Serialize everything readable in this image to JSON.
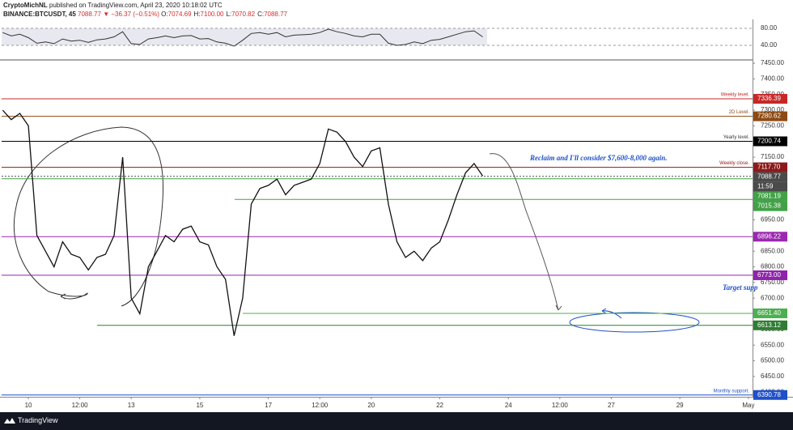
{
  "header": {
    "author": "CryptoMichNL",
    "published": "published on TradingView.com, April 23, 2020 10:18:02 UTC",
    "symbol": "BINANCE:BTCUSDT, 45",
    "price": "7088.77",
    "change": "▼ −36.37 (−0.51%)",
    "ohlc": [
      {
        "key": "O:",
        "value": "7074.69"
      },
      {
        "key": "H:",
        "value": "7100.00"
      },
      {
        "key": "L:",
        "value": "7070.82"
      },
      {
        "key": "C:",
        "value": "7088.77"
      }
    ],
    "brand": "TradingView"
  },
  "chart_data": {
    "type": "line",
    "color": "#111111",
    "x": [
      -0.75,
      -0.5,
      -0.25,
      0,
      0.25,
      0.5,
      0.75,
      1,
      1.25,
      1.5,
      1.75,
      2,
      2.25,
      2.5,
      2.75,
      3,
      3.25,
      3.5,
      3.75,
      4,
      4.25,
      4.5,
      4.75,
      5,
      5.25,
      5.5,
      5.75,
      6,
      6.25,
      6.5,
      6.75,
      7,
      7.25,
      7.5,
      7.75,
      8,
      8.25,
      8.5,
      8.75,
      9,
      9.25,
      9.5,
      9.75,
      10,
      10.25,
      10.5,
      10.75,
      11,
      11.25,
      11.5,
      11.75,
      12,
      12.25,
      12.5,
      12.75,
      13,
      13.25
    ],
    "values": [
      7300,
      7270,
      7290,
      7250,
      6900,
      6850,
      6800,
      6880,
      6840,
      6830,
      6790,
      6830,
      6840,
      6900,
      7150,
      6700,
      6650,
      6800,
      6850,
      6900,
      6880,
      6920,
      6930,
      6880,
      6870,
      6800,
      6760,
      6580,
      6700,
      7000,
      7050,
      7060,
      7080,
      7030,
      7060,
      7070,
      7080,
      7130,
      7240,
      7230,
      7200,
      7150,
      7120,
      7170,
      7180,
      7000,
      6880,
      6830,
      6850,
      6820,
      6860,
      6880,
      6950,
      7030,
      7100,
      7130,
      7090
    ],
    "rsi": [
      70,
      62,
      66,
      58,
      45,
      48,
      44,
      55,
      50,
      52,
      47,
      53,
      55,
      60,
      72,
      44,
      42,
      55,
      58,
      62,
      58,
      62,
      63,
      55,
      56,
      48,
      45,
      38,
      52,
      68,
      70,
      66,
      70,
      60,
      64,
      65,
      66,
      70,
      78,
      72,
      68,
      62,
      60,
      66,
      66,
      45,
      40,
      42,
      48,
      44,
      52,
      54,
      60,
      66,
      72,
      74,
      60
    ],
    "xlim": [
      -0.78,
      21.12
    ],
    "ylim": [
      6385,
      7458
    ],
    "rsi_ylim": [
      9.5,
      99
    ],
    "rsi_ticks": [
      {
        "value": 80,
        "label": "80.00"
      },
      {
        "value": 40,
        "label": "40.00"
      }
    ],
    "xticks": [
      {
        "value": 0,
        "label": "10"
      },
      {
        "value": 1.5,
        "label": "12:00"
      },
      {
        "value": 3,
        "label": "13"
      },
      {
        "value": 5,
        "label": "15"
      },
      {
        "value": 7,
        "label": "17"
      },
      {
        "value": 8.5,
        "label": "12:00"
      },
      {
        "value": 10,
        "label": "20"
      },
      {
        "value": 12,
        "label": "22"
      },
      {
        "value": 14,
        "label": "24"
      },
      {
        "value": 15.5,
        "label": "12:00"
      },
      {
        "value": 17,
        "label": "27"
      },
      {
        "value": 19,
        "label": "29"
      },
      {
        "value": 21,
        "label": "May"
      }
    ],
    "yticks": [
      {
        "value": 7450,
        "label": "7450.00"
      },
      {
        "value": 7400,
        "label": "7400.00"
      },
      {
        "value": 7350,
        "label": "7350.00"
      },
      {
        "value": 7300,
        "label": "7300.00"
      },
      {
        "value": 7250,
        "label": "7250.00"
      },
      {
        "value": 7200,
        "label": "7200.00"
      },
      {
        "value": 7150,
        "label": "7150.00"
      },
      {
        "value": 7100,
        "label": "7100.00"
      },
      {
        "value": 7050,
        "label": "7050.00"
      },
      {
        "value": 7000,
        "label": "7000.00"
      },
      {
        "value": 6950,
        "label": "6950.00"
      },
      {
        "value": 6900,
        "label": "6900.00"
      },
      {
        "value": 6850,
        "label": "6850.00"
      },
      {
        "value": 6800,
        "label": "6800.00"
      },
      {
        "value": 6750,
        "label": "6750.00"
      },
      {
        "value": 6700,
        "label": "6700.00"
      },
      {
        "value": 6650,
        "label": "6650.00"
      },
      {
        "value": 6600,
        "label": "6600.00"
      },
      {
        "value": 6550,
        "label": "6550.00"
      },
      {
        "value": 6500,
        "label": "6500.00"
      },
      {
        "value": 6450,
        "label": "6450.00"
      },
      {
        "value": 6400,
        "label": "6400.00"
      }
    ],
    "levels": [
      {
        "value": 7336.39,
        "label": "7336.39",
        "color": "#c62828",
        "note": "Weekly level."
      },
      {
        "value": 7280.62,
        "label": "7280.62",
        "color": "#8d4a12",
        "note": "2D Level."
      },
      {
        "value": 7200.74,
        "label": "7200.74",
        "color": "#000000",
        "note": "Yearly level."
      },
      {
        "value": 7117.7,
        "label": "7117.70",
        "color": "#8b1a1a",
        "note": "Weekly close."
      },
      {
        "value": 7088.77,
        "label": "7088.77",
        "color": "#4a4a4a",
        "countdown": "11:59"
      },
      {
        "value": 7081.19,
        "label": "7081.19",
        "color": "#43a047"
      },
      {
        "value": 7015.38,
        "label": "7015.38",
        "color": "#43a047"
      },
      {
        "value": 6896.22,
        "label": "6896.22",
        "color": "#9c27b0"
      },
      {
        "value": 6773.0,
        "label": "6773.00",
        "color": "#8e24aa"
      },
      {
        "value": 6651.4,
        "label": "6651.40",
        "color": "#4caf50"
      },
      {
        "value": 6613.12,
        "label": "6613.12",
        "color": "#2e7d32"
      },
      {
        "value": 6390.78,
        "label": "6390.78",
        "color": "#1e50c8",
        "note": "Monthly support."
      }
    ],
    "annotations": [
      "Reclaim and I'll consider $7,600-8,000 again.",
      "Target supp"
    ]
  }
}
